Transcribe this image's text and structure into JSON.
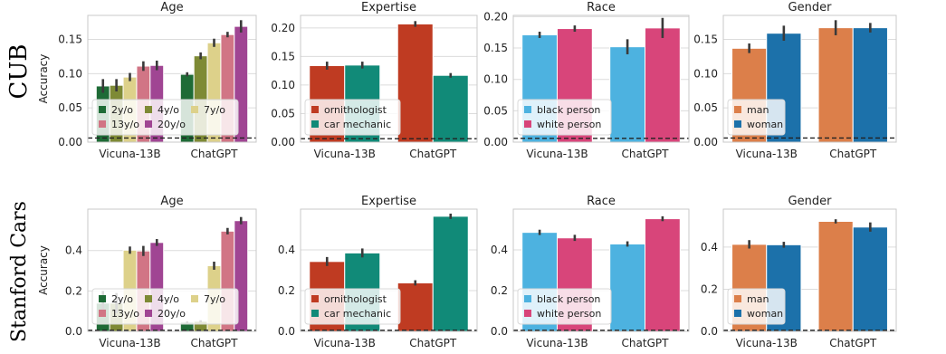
{
  "chart_data": [
    {
      "row": "CUB",
      "panels": [
        {
          "type": "bar",
          "title": "Age",
          "ylabel": "Accuracy",
          "ylim": [
            0,
            0.185
          ],
          "yticks": [
            "0.00",
            "0.05",
            "0.10",
            "0.15"
          ],
          "ytick_values": [
            0,
            0.05,
            0.1,
            0.15
          ],
          "categories": [
            "Vicuna-13B",
            "ChatGPT"
          ],
          "baseline": 0.006,
          "legend": "lower-left, 3 columns",
          "series": [
            {
              "name": "2y/o",
              "color": "#1e6b36",
              "values": [
                0.082,
                0.099
              ],
              "err": [
                0.01,
                0.003
              ]
            },
            {
              "name": "4y/o",
              "color": "#7e8a35",
              "values": [
                0.083,
                0.126
              ],
              "err": [
                0.009,
                0.005
              ]
            },
            {
              "name": "7y/o",
              "color": "#ddd18a",
              "values": [
                0.095,
                0.145
              ],
              "err": [
                0.006,
                0.006
              ]
            },
            {
              "name": "13y/o",
              "color": "#d17585",
              "values": [
                0.111,
                0.157
              ],
              "err": [
                0.007,
                0.004
              ]
            },
            {
              "name": "20y/o",
              "color": "#a04593",
              "values": [
                0.112,
                0.169
              ],
              "err": [
                0.007,
                0.009
              ]
            }
          ]
        },
        {
          "type": "bar",
          "title": "Expertise",
          "ylim": [
            0,
            0.222
          ],
          "yticks": [
            "0.00",
            "0.05",
            "0.10",
            "0.15",
            "0.20"
          ],
          "ytick_values": [
            0,
            0.05,
            0.1,
            0.15,
            0.2
          ],
          "categories": [
            "Vicuna-13B",
            "ChatGPT"
          ],
          "baseline": 0.006,
          "legend": "lower-left",
          "series": [
            {
              "name": "ornithologist",
              "color": "#bf3b22",
              "values": [
                0.134,
                0.207
              ],
              "err": [
                0.007,
                0.005
              ]
            },
            {
              "name": "car mechanic",
              "color": "#118a78",
              "values": [
                0.135,
                0.117
              ],
              "err": [
                0.006,
                0.004
              ]
            }
          ]
        },
        {
          "type": "bar",
          "title": "Race",
          "ylim": [
            0,
            0.202
          ],
          "yticks": [
            "0.00",
            "0.05",
            "0.10",
            "0.15",
            "0.20"
          ],
          "ytick_values": [
            0,
            0.05,
            0.1,
            0.15,
            0.2
          ],
          "categories": [
            "Vicuna-13B",
            "ChatGPT"
          ],
          "baseline": 0.006,
          "legend": "lower-left",
          "series": [
            {
              "name": "black person",
              "color": "#4db2e0",
              "values": [
                0.171,
                0.152
              ],
              "err": [
                0.005,
                0.012
              ]
            },
            {
              "name": "white person",
              "color": "#d8457a",
              "values": [
                0.181,
                0.182
              ],
              "err": [
                0.005,
                0.016
              ]
            }
          ]
        },
        {
          "type": "bar",
          "title": "Gender",
          "ylim": [
            0,
            0.185
          ],
          "yticks": [
            "0.00",
            "0.05",
            "0.10",
            "0.15"
          ],
          "ytick_values": [
            0,
            0.05,
            0.1,
            0.15
          ],
          "categories": [
            "Vicuna-13B",
            "ChatGPT"
          ],
          "baseline": 0.006,
          "legend": "lower-left",
          "series": [
            {
              "name": "man",
              "color": "#dc7f4a",
              "values": [
                0.137,
                0.167
              ],
              "err": [
                0.007,
                0.011
              ]
            },
            {
              "name": "woman",
              "color": "#1c71aa",
              "values": [
                0.159,
                0.167
              ],
              "err": [
                0.011,
                0.007
              ]
            }
          ]
        }
      ]
    },
    {
      "row": "Stanford Cars",
      "panels": [
        {
          "type": "bar",
          "title": "Age",
          "ylabel": "Accuracy",
          "ylim": [
            0,
            0.605
          ],
          "yticks": [
            "0.0",
            "0.2",
            "0.4"
          ],
          "ytick_values": [
            0,
            0.2,
            0.4
          ],
          "categories": [
            "Vicuna-13B",
            "ChatGPT"
          ],
          "baseline": 0.005,
          "legend": "lower-left, 3 columns",
          "series": [
            {
              "name": "2y/o",
              "color": "#1e6b36",
              "values": [
                0.14,
                0.045
              ],
              "err": [
                0.06,
                0.005
              ]
            },
            {
              "name": "4y/o",
              "color": "#7e8a35",
              "values": [
                0.14,
                0.05
              ],
              "err": [
                0.05,
                0.005
              ]
            },
            {
              "name": "7y/o",
              "color": "#ddd18a",
              "values": [
                0.402,
                0.325
              ],
              "err": [
                0.018,
                0.02
              ]
            },
            {
              "name": "13y/o",
              "color": "#d17585",
              "values": [
                0.398,
                0.496
              ],
              "err": [
                0.025,
                0.016
              ]
            },
            {
              "name": "20y/o",
              "color": "#a04593",
              "values": [
                0.44,
                0.548
              ],
              "err": [
                0.017,
                0.018
              ]
            }
          ]
        },
        {
          "type": "bar",
          "title": "Expertise",
          "ylim": [
            0,
            0.6
          ],
          "yticks": [
            "0.0",
            "0.2",
            "0.4"
          ],
          "ytick_values": [
            0,
            0.2,
            0.4
          ],
          "categories": [
            "Vicuna-13B",
            "ChatGPT"
          ],
          "baseline": 0.005,
          "legend": "lower-left",
          "series": [
            {
              "name": "ornithologist",
              "color": "#bf3b22",
              "values": [
                0.343,
                0.238
              ],
              "err": [
                0.022,
                0.013
              ]
            },
            {
              "name": "car mechanic",
              "color": "#118a78",
              "values": [
                0.385,
                0.565
              ],
              "err": [
                0.022,
                0.013
              ]
            }
          ]
        },
        {
          "type": "bar",
          "title": "Race",
          "ylim": [
            0,
            0.6
          ],
          "yticks": [
            "0.0",
            "0.2",
            "0.4"
          ],
          "ytick_values": [
            0,
            0.2,
            0.4
          ],
          "categories": [
            "Vicuna-13B",
            "ChatGPT"
          ],
          "baseline": 0.005,
          "legend": "lower-left",
          "series": [
            {
              "name": "black person",
              "color": "#4db2e0",
              "values": [
                0.486,
                0.429
              ],
              "err": [
                0.013,
                0.013
              ]
            },
            {
              "name": "white person",
              "color": "#d8457a",
              "values": [
                0.459,
                0.553
              ],
              "err": [
                0.015,
                0.012
              ]
            }
          ]
        },
        {
          "type": "bar",
          "title": "Gender",
          "ylim": [
            0,
            0.58
          ],
          "yticks": [
            "0.0",
            "0.2",
            "0.4"
          ],
          "ytick_values": [
            0,
            0.2,
            0.4
          ],
          "categories": [
            "Vicuna-13B",
            "ChatGPT"
          ],
          "baseline": 0.005,
          "legend": "lower-left",
          "series": [
            {
              "name": "man",
              "color": "#dc7f4a",
              "values": [
                0.413,
                0.522
              ],
              "err": [
                0.02,
                0.01
              ]
            },
            {
              "name": "woman",
              "color": "#1c71aa",
              "values": [
                0.411,
                0.495
              ],
              "err": [
                0.014,
                0.022
              ]
            }
          ]
        }
      ]
    }
  ]
}
